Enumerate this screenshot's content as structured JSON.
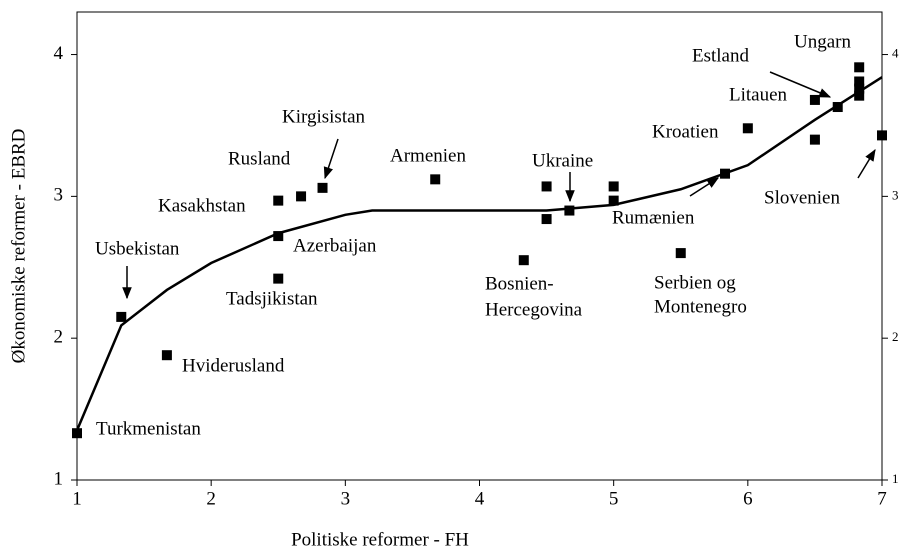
{
  "chart_data": {
    "type": "scatter",
    "xlabel": "Politiske reformer - FH",
    "ylabel": "Økonomiske reformer - EBRD",
    "xlim": [
      1,
      7
    ],
    "xticks": [
      1,
      2,
      3,
      4,
      5,
      6,
      7
    ],
    "ylim": [
      1,
      4.3
    ],
    "yticks": [
      1,
      2,
      3,
      4
    ],
    "y2lim": [
      1,
      4.3
    ],
    "y2ticks": [
      1,
      2,
      3,
      4
    ],
    "points": {
      "color": "#000000",
      "x": [
        1,
        1.33,
        1.67,
        2.5,
        2.5,
        2.5,
        2.67,
        2.83,
        3.67,
        4.33,
        4.5,
        4.5,
        4.67,
        5,
        5,
        5.5,
        5.83,
        6,
        6.5,
        6.5,
        6.67,
        6.83,
        6.83,
        6.83,
        6.83,
        7
      ],
      "y": [
        1.33,
        2.15,
        1.88,
        2.97,
        2.72,
        2.42,
        3.0,
        3.06,
        3.12,
        2.55,
        3.07,
        2.84,
        2.9,
        3.07,
        2.97,
        2.6,
        3.16,
        3.48,
        3.68,
        3.4,
        3.63,
        3.91,
        3.81,
        3.76,
        3.71,
        3.43
      ]
    },
    "curve": {
      "color": "#000000",
      "x": [
        1,
        1.33,
        1.67,
        2,
        2.5,
        3,
        3.2,
        4,
        4.5,
        5,
        5.5,
        6,
        6.5,
        7
      ],
      "y": [
        1.35,
        2.09,
        2.34,
        2.53,
        2.74,
        2.87,
        2.9,
        2.9,
        2.9,
        2.94,
        3.05,
        3.22,
        3.54,
        3.84
      ]
    },
    "annotations": [
      "Turkmenistan",
      "Usbekistan",
      "Hviderusland",
      "Kasakhstan",
      "Azerbaijan",
      "Tadsjikistan",
      "Rusland",
      "Kirgisistan",
      "Armenien",
      "Bosnien-",
      "Hercegovina",
      "Ukraine",
      "Rumænien",
      "Serbien og",
      "Montenegro",
      "Kroatien",
      "Litauen",
      "Estland",
      "Ungarn",
      "Slovenien"
    ]
  }
}
